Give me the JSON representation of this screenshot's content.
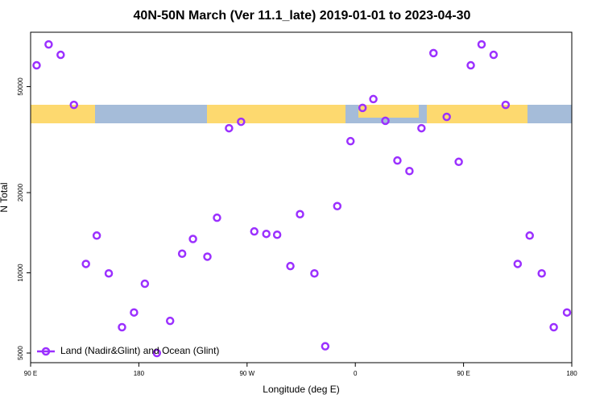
{
  "chart_data": {
    "type": "scatter",
    "title": "40N-50N March (Ver 11.1_late)   2019-01-01 to 2023-04-30",
    "x_label": "Longitude (deg E)",
    "y_label": "N Total",
    "xlim": [
      90,
      540
    ],
    "xticks": [
      {
        "value": 90,
        "label": "90 E"
      },
      180,
      {
        "value": 270,
        "label": "90 W"
      },
      {
        "value": 360,
        "label": "0"
      },
      {
        "value": 450,
        "label": "90 E"
      },
      {
        "value": 540,
        "label": "180"
      }
    ],
    "ylim": [
      4600,
      80000
    ],
    "y_log": true,
    "yticks": [
      5000,
      10000,
      20000,
      50000
    ],
    "legend_position": "bottom-left",
    "series": [
      {
        "name": "Land (Nadir&Glint) and Ocean (Glint)",
        "color": "#9b30ff",
        "x": [
          95,
          105,
          115,
          126,
          136,
          145,
          155,
          166,
          176,
          185,
          195,
          206,
          216,
          225,
          237,
          245,
          255,
          265,
          276,
          286,
          295,
          306,
          314,
          326,
          335,
          345,
          356,
          366,
          375,
          385,
          395,
          405,
          415,
          425,
          436,
          446,
          456,
          465,
          475,
          485,
          495,
          505,
          515,
          525,
          536
        ],
        "values": [
          60100,
          72000,
          65800,
          42700,
          10800,
          13800,
          9950,
          6250,
          7100,
          9100,
          5000,
          6600,
          11800,
          13400,
          11500,
          16100,
          34900,
          36900,
          14300,
          14000,
          13900,
          10600,
          16600,
          9950,
          5300,
          17800,
          31200,
          41600,
          44900,
          37200,
          26400,
          24100,
          34900,
          66800,
          38500,
          26100,
          60100,
          72000,
          65800,
          42700,
          10800,
          13800,
          9950,
          6250,
          7100
        ]
      }
    ]
  }
}
